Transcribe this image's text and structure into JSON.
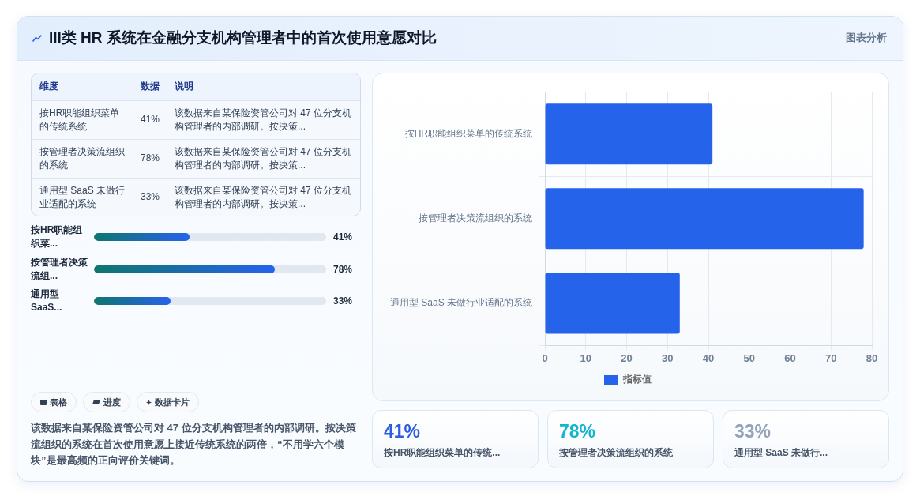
{
  "chart_data": [
    {
      "type": "other",
      "title": "III类 HR 系统在金融分支机构管理者中的首次使用意愿对比",
      "annotations": [
        "图表分析"
      ]
    },
    {
      "type": "other",
      "categories": [
        "按HR职能组织菜单的传统系统",
        "按管理者决策流组织的系统",
        "通用型 SaaS 未做行业适配的系统"
      ],
      "value_labels": [
        "41%",
        "78%",
        "33%"
      ],
      "annotations": [
        "维度",
        "数据",
        "说明",
        "该数据来自某保险资管公司对 47 位分支机构管理者的内部调研。按决策...",
        "该数据来自某保险资管公司对 47 位分支机构管理者的内部调研。按决策...",
        "该数据来自某保险资管公司对 47 位分支机构管理者的内部调研。按决策..."
      ]
    },
    {
      "type": "bar",
      "orientation": "horizontal",
      "categories": [
        "按HR职能组织菜...",
        "按管理者决策流组...",
        "通用型 SaaS..."
      ],
      "values": [
        41,
        78,
        33
      ],
      "value_labels": [
        "41%",
        "78%",
        "33%"
      ],
      "xlim": [
        0,
        100
      ]
    },
    {
      "type": "other",
      "annotations": [
        "表格",
        "进度",
        "数据卡片",
        "该数据来自某保险资管公司对 47 位分支机构管理者的内部调研。按决策流组织的系统在首次使用意愿上接近传统系统的两倍，“不用学六个模块”是最高频的正向评价关键词。"
      ]
    },
    {
      "type": "bar",
      "orientation": "horizontal",
      "categories": [
        "按HR职能组织菜单的传统系统",
        "按管理者决策流组织的系统",
        "通用型 SaaS 未做行业适配的系统"
      ],
      "series": [
        {
          "name": "指标值",
          "color": "#2563eb",
          "values": [
            41,
            78,
            33
          ]
        }
      ],
      "xlim": [
        0,
        80
      ],
      "xticks": [
        0,
        10,
        20,
        30,
        40,
        50,
        60,
        70,
        80
      ],
      "grid": true,
      "legend": "bottom"
    },
    {
      "type": "other",
      "categories": [
        "按HR职能组织菜单的传统...",
        "按管理者决策流组织的系统",
        "通用型 SaaS 未做行..."
      ],
      "value_labels": [
        "41%",
        "78%",
        "33%"
      ]
    }
  ]
}
